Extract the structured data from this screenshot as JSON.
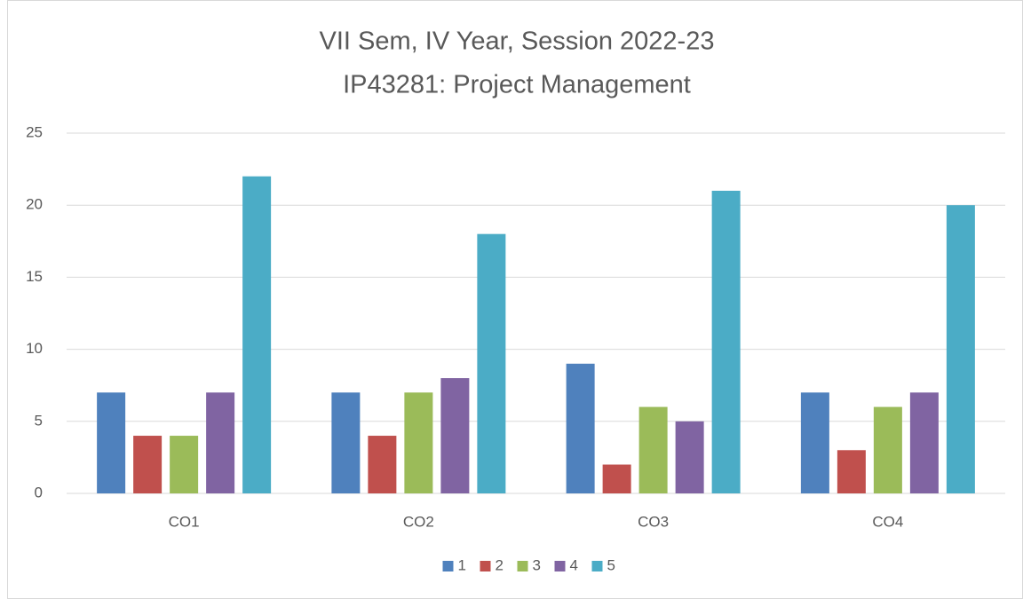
{
  "chart_data": {
    "type": "bar",
    "title": "VII Sem, IV Year, Session 2022-23",
    "subtitle": "IP43281: Project Management",
    "categories": [
      "CO1",
      "CO2",
      "CO3",
      "CO4"
    ],
    "series": [
      {
        "name": "1",
        "color": "#4f81bd",
        "values": [
          7,
          7,
          9,
          7
        ]
      },
      {
        "name": "2",
        "color": "#c0504d",
        "values": [
          4,
          4,
          2,
          3
        ]
      },
      {
        "name": "3",
        "color": "#9bbb59",
        "values": [
          4,
          7,
          6,
          6
        ]
      },
      {
        "name": "4",
        "color": "#8064a2",
        "values": [
          7,
          8,
          5,
          7
        ]
      },
      {
        "name": "5",
        "color": "#4bacc6",
        "values": [
          22,
          18,
          21,
          20
        ]
      }
    ],
    "ylim": [
      0,
      25
    ],
    "yticks": [
      0,
      5,
      10,
      15,
      20,
      25
    ],
    "grid": true,
    "legend": "bottom"
  }
}
